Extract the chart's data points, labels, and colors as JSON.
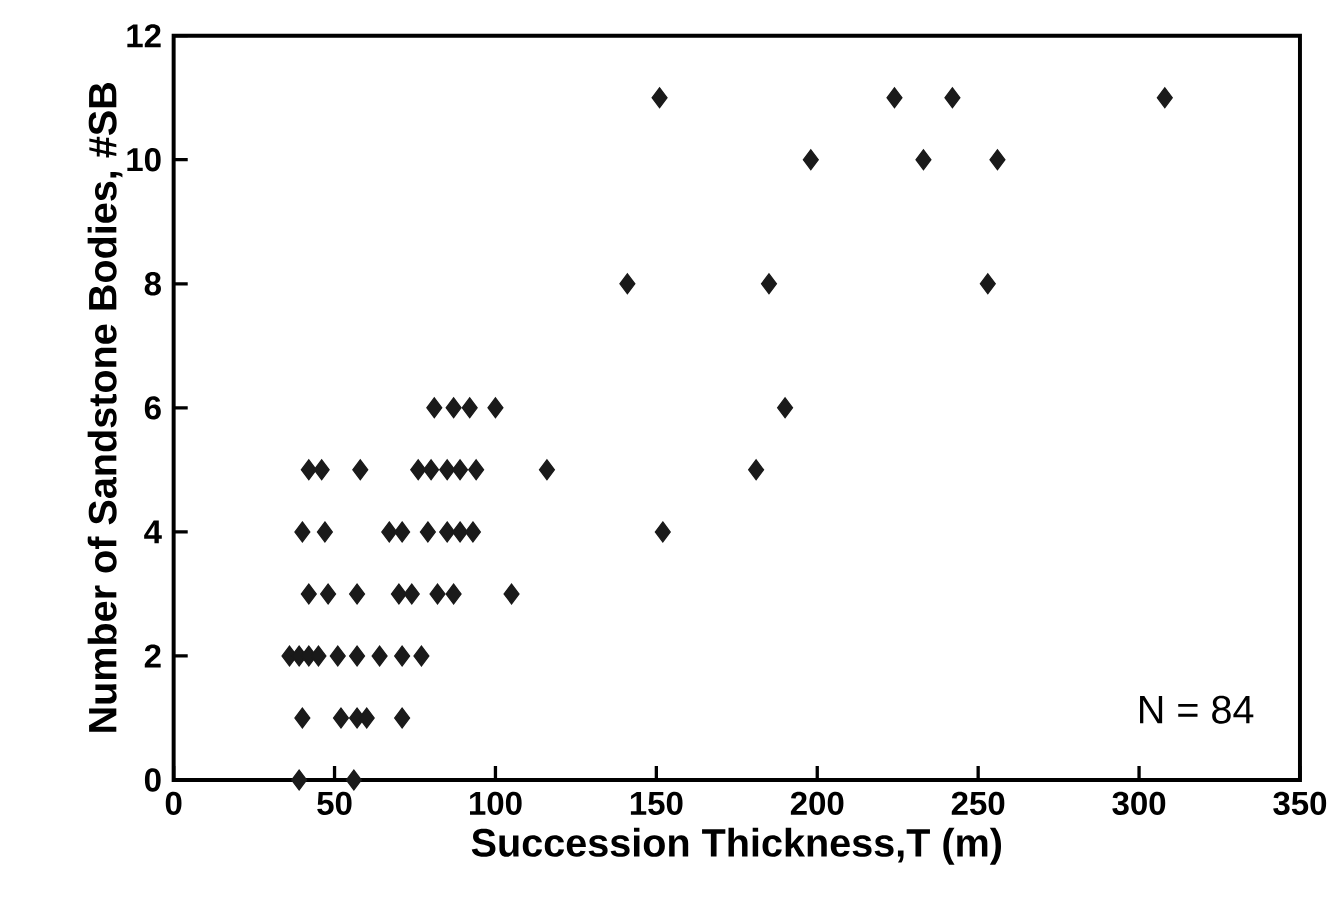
{
  "chart_data": {
    "type": "scatter",
    "xlabel": "Succession Thickness,T (m)",
    "ylabel": "Number of Sandstone Bodies, #SB",
    "marker": "diamond",
    "grid": false,
    "xlim": [
      0,
      350
    ],
    "ylim": [
      0,
      12
    ],
    "xticks": [
      0,
      50,
      100,
      150,
      200,
      250,
      300,
      350
    ],
    "yticks": [
      0,
      2,
      4,
      6,
      8,
      10,
      12
    ],
    "annotations": [
      "N = 84"
    ],
    "series": [
      {
        "color": "#1a1a1a",
        "x": [
          151,
          224,
          242,
          308,
          198,
          233,
          256,
          141,
          185,
          253,
          190,
          181,
          116,
          152,
          81,
          87,
          92,
          100,
          42,
          46,
          58,
          76,
          80,
          85,
          89,
          94,
          40,
          47,
          67,
          71,
          79,
          85,
          89,
          93,
          42,
          48,
          57,
          70,
          74,
          82,
          87,
          105,
          36,
          39,
          42,
          45,
          51,
          57,
          64,
          71,
          77,
          40,
          52,
          57,
          60,
          71,
          39,
          56
        ],
        "values": [
          11,
          11,
          11,
          11,
          10,
          10,
          10,
          8,
          8,
          8,
          6,
          5,
          5,
          4,
          6,
          6,
          6,
          6,
          5,
          5,
          5,
          5,
          5,
          5,
          5,
          5,
          4,
          4,
          4,
          4,
          4,
          4,
          4,
          4,
          3,
          3,
          3,
          3,
          3,
          3,
          3,
          3,
          2,
          2,
          2,
          2,
          2,
          2,
          2,
          2,
          2,
          1,
          1,
          1,
          1,
          1,
          0,
          0
        ]
      }
    ]
  }
}
